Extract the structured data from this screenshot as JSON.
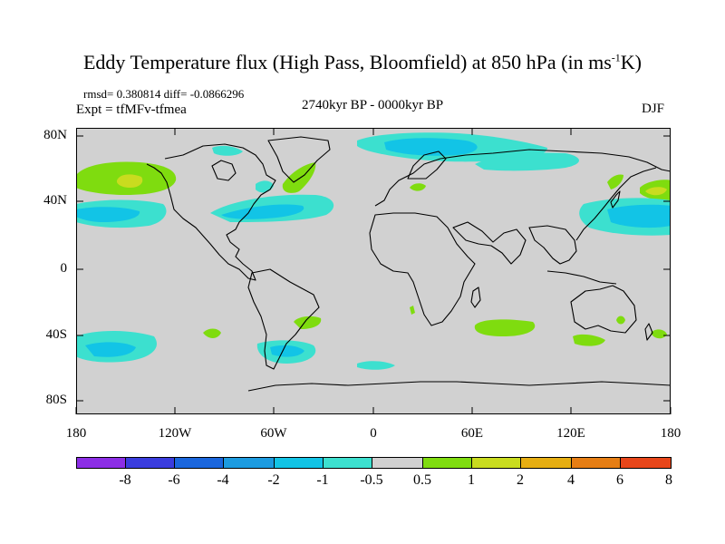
{
  "title": {
    "main": "Eddy Temperature flux (High Pass, Bloomfield) at 850 hPa (in ms",
    "sup": "-1",
    "end": "K)"
  },
  "stats": "rmsd= 0.380814 diff= -0.0866296",
  "expt": "Expt = tfMFv-tfmea",
  "period": "2740kyr BP - 0000kyr BP",
  "season": "DJF",
  "axes": {
    "y_ticks": [
      "80N",
      "40N",
      "0",
      "40S",
      "80S"
    ],
    "x_ticks": [
      "180",
      "120W",
      "60W",
      "0",
      "60E",
      "120E",
      "180"
    ]
  },
  "colorbar": {
    "labels": [
      "-8",
      "-6",
      "-4",
      "-2",
      "-1",
      "-0.5",
      "0.5",
      "1",
      "2",
      "4",
      "6",
      "8"
    ],
    "colors": [
      "#8c2ee6",
      "#3a3cde",
      "#1a66dd",
      "#1c9be0",
      "#12c4e6",
      "#3ce0cf",
      "#d1d1d1",
      "#7fdc0f",
      "#c9dc1f",
      "#e6ae12",
      "#e67e14",
      "#e8461a"
    ]
  },
  "map_colors": {
    "land_sea": "#d1d1d1",
    "neg_weak": "#3ce0cf",
    "neg_mod": "#12c4e6",
    "pos_weak": "#7fdc0f",
    "pos_mod": "#c9dc1f"
  }
}
